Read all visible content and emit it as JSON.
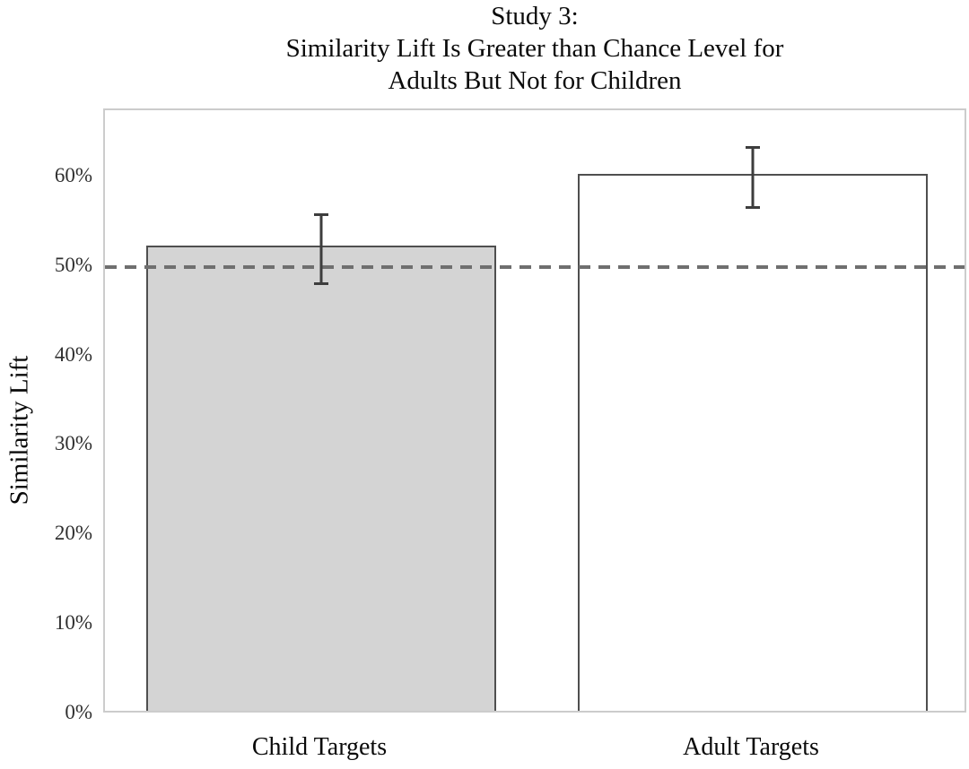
{
  "chart_data": {
    "type": "bar",
    "title": "Study 3:\nSimilarity Lift Is Greater than Chance Level for\nAdults But Not for Children",
    "ylabel": "Similarity Lift",
    "xlabel": "",
    "categories": [
      "Child Targets",
      "Adult Targets"
    ],
    "values": [
      52,
      60
    ],
    "error_bars": {
      "plus": [
        4,
        3.5
      ],
      "minus": [
        4,
        3.5
      ]
    },
    "bar_styles": [
      {
        "fill": "#d4d4d4",
        "stroke": "#4f4f4f"
      },
      {
        "fill": "#ffffff",
        "stroke": "#4f4f4f"
      }
    ],
    "ytick_labels": [
      "0%",
      "10%",
      "20%",
      "30%",
      "40%",
      "50%",
      "60%"
    ],
    "ytick_values": [
      0,
      10,
      20,
      30,
      40,
      50,
      60
    ],
    "ylim": [
      0,
      67.5
    ],
    "grid": false,
    "legend": "none",
    "chance_line": {
      "value": 50,
      "style": "dashed",
      "color": "#6f6f6f"
    },
    "colors": {
      "error_bar": "#3d3d3d",
      "axis_border": "#cccccc",
      "tick_text": "#303030",
      "title_text": "#0a0a0a"
    }
  }
}
